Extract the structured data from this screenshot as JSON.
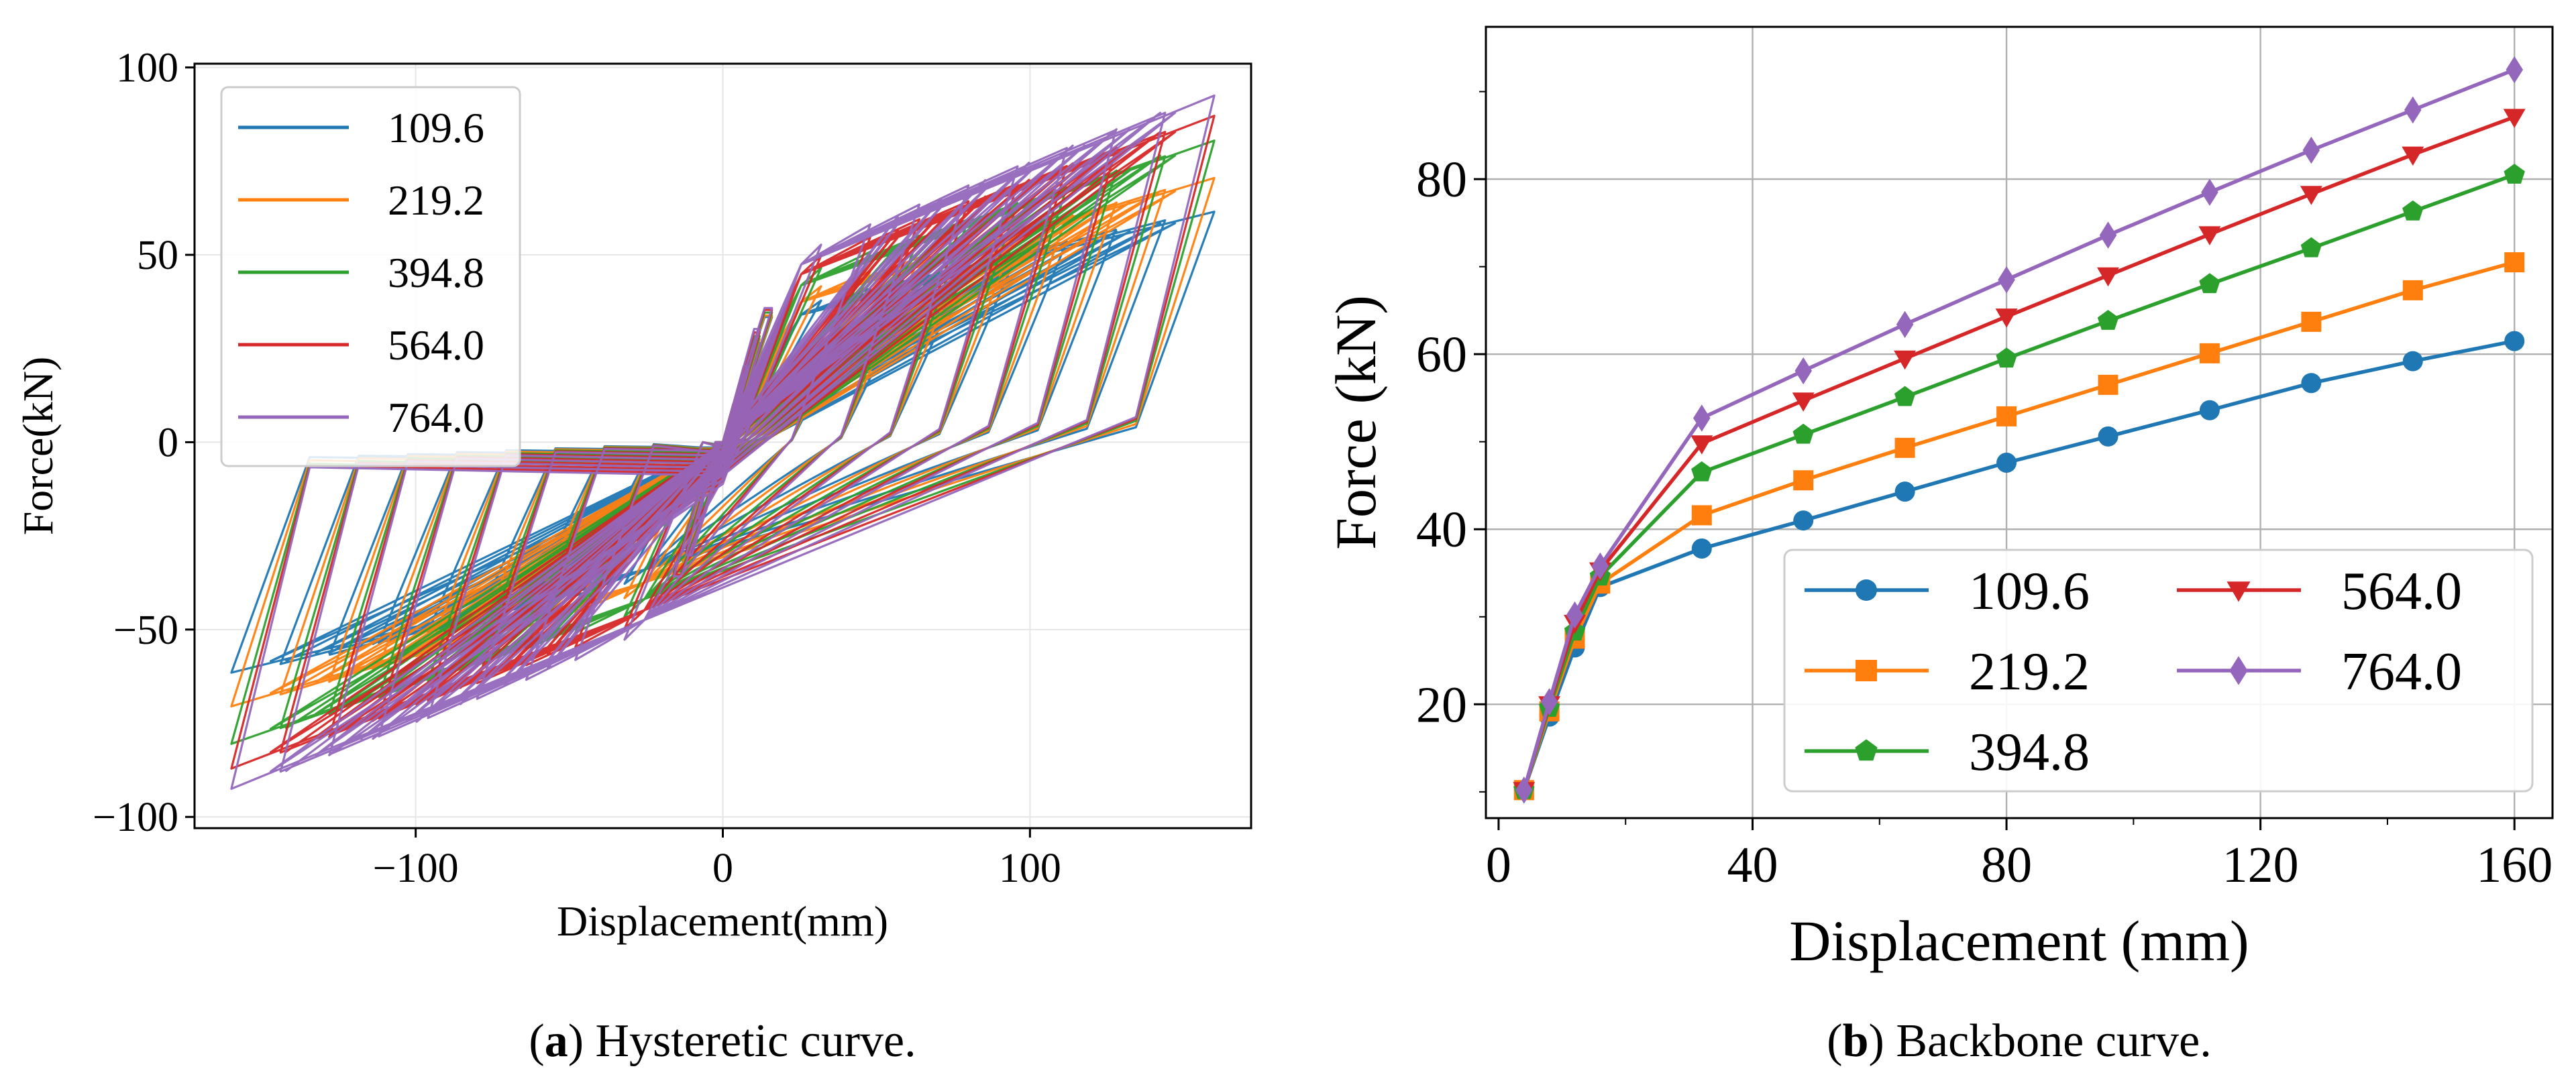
{
  "colors": {
    "109.6": "#1f77b4",
    "219.2": "#ff7f0e",
    "394.8": "#2ca02c",
    "564.0": "#d62728",
    "764.0": "#9467bd",
    "grid": "#b0b0b0",
    "axis": "#000000"
  },
  "chart_data": [
    {
      "id": "hysteretic",
      "type": "line",
      "title": "",
      "caption_letter": "a",
      "caption_rest": ") Hysteretic curve.",
      "caption_open": "(",
      "xlabel": "Displacement(mm)",
      "ylabel": "Force(kN)",
      "xlim": [
        -172,
        172
      ],
      "ylim": [
        -103,
        101
      ],
      "xticks": [
        -100,
        0,
        100
      ],
      "xtick_labels": [
        "−100",
        "0",
        "100"
      ],
      "yticks": [
        -100,
        -50,
        0,
        50,
        100
      ],
      "ytick_labels": [
        "−100",
        "−50",
        "0",
        "50",
        "100"
      ],
      "grid": true,
      "legend": "upper-left",
      "legend_entries": [
        "109.6",
        "219.2",
        "394.8",
        "564.0",
        "764.0"
      ],
      "cycle_amplitudes_mm": [
        4,
        8,
        12,
        16,
        32,
        48,
        64,
        80,
        96,
        112,
        128,
        144,
        160
      ],
      "series": [
        {
          "name": "109.6",
          "peak_force_kN": [
            10.2,
            18.6,
            26.5,
            33.4,
            37.8,
            41.0,
            44.3,
            47.6,
            50.6,
            53.6,
            56.7,
            59.2,
            61.5
          ]
        },
        {
          "name": "219.2",
          "peak_force_kN": [
            10.2,
            19.2,
            27.5,
            33.8,
            41.6,
            45.6,
            49.3,
            52.9,
            56.5,
            60.1,
            63.7,
            67.3,
            70.5
          ]
        },
        {
          "name": "394.8",
          "peak_force_kN": [
            10.2,
            19.6,
            28.3,
            34.6,
            46.5,
            50.8,
            55.1,
            59.5,
            63.8,
            68.0,
            72.1,
            76.3,
            80.5
          ]
        },
        {
          "name": "564.0",
          "peak_force_kN": [
            10.2,
            20.0,
            29.3,
            35.3,
            49.8,
            54.7,
            59.5,
            64.3,
            69.0,
            73.7,
            78.3,
            82.8,
            87.1
          ]
        },
        {
          "name": "764.0",
          "peak_force_kN": [
            10.2,
            20.3,
            30.2,
            35.8,
            52.7,
            58.1,
            63.4,
            68.5,
            73.6,
            78.5,
            83.3,
            87.9,
            92.5
          ]
        }
      ]
    },
    {
      "id": "backbone",
      "type": "line",
      "title": "",
      "caption_letter": "b",
      "caption_rest": ") Backbone curve.",
      "caption_open": "(",
      "xlabel": "Displacement (mm)",
      "ylabel": "Force (kN)",
      "xlim": [
        -2,
        166
      ],
      "ylim": [
        7,
        97.4
      ],
      "xticks": [
        0,
        40,
        80,
        120,
        160
      ],
      "xtick_labels": [
        "0",
        "40",
        "80",
        "120",
        "160"
      ],
      "yticks": [
        20,
        40,
        60,
        80
      ],
      "ytick_labels": [
        "20",
        "40",
        "60",
        "80"
      ],
      "grid": true,
      "legend": "lower-right",
      "legend_columns": 2,
      "x": [
        4,
        8,
        12,
        16,
        32,
        48,
        64,
        80,
        96,
        112,
        128,
        144,
        160
      ],
      "series": [
        {
          "name": "109.6",
          "marker": "circle",
          "values": [
            10.2,
            18.6,
            26.5,
            33.4,
            37.8,
            41.0,
            44.3,
            47.6,
            50.6,
            53.6,
            56.7,
            59.2,
            61.5
          ]
        },
        {
          "name": "219.2",
          "marker": "square",
          "values": [
            10.2,
            19.2,
            27.5,
            33.8,
            41.6,
            45.6,
            49.3,
            52.9,
            56.5,
            60.1,
            63.7,
            67.3,
            70.5
          ]
        },
        {
          "name": "394.8",
          "marker": "pentagon",
          "values": [
            10.2,
            19.6,
            28.3,
            34.6,
            46.5,
            50.8,
            55.1,
            59.5,
            63.8,
            68.0,
            72.1,
            76.3,
            80.5
          ]
        },
        {
          "name": "564.0",
          "marker": "triangle-down",
          "values": [
            10.2,
            20.0,
            29.3,
            35.3,
            49.8,
            54.7,
            59.5,
            64.3,
            69.0,
            73.7,
            78.3,
            82.8,
            87.1
          ]
        },
        {
          "name": "764.0",
          "marker": "diamond",
          "values": [
            10.2,
            20.3,
            30.2,
            35.8,
            52.7,
            58.1,
            63.4,
            68.5,
            73.6,
            78.5,
            83.3,
            87.9,
            92.5
          ]
        }
      ]
    }
  ]
}
